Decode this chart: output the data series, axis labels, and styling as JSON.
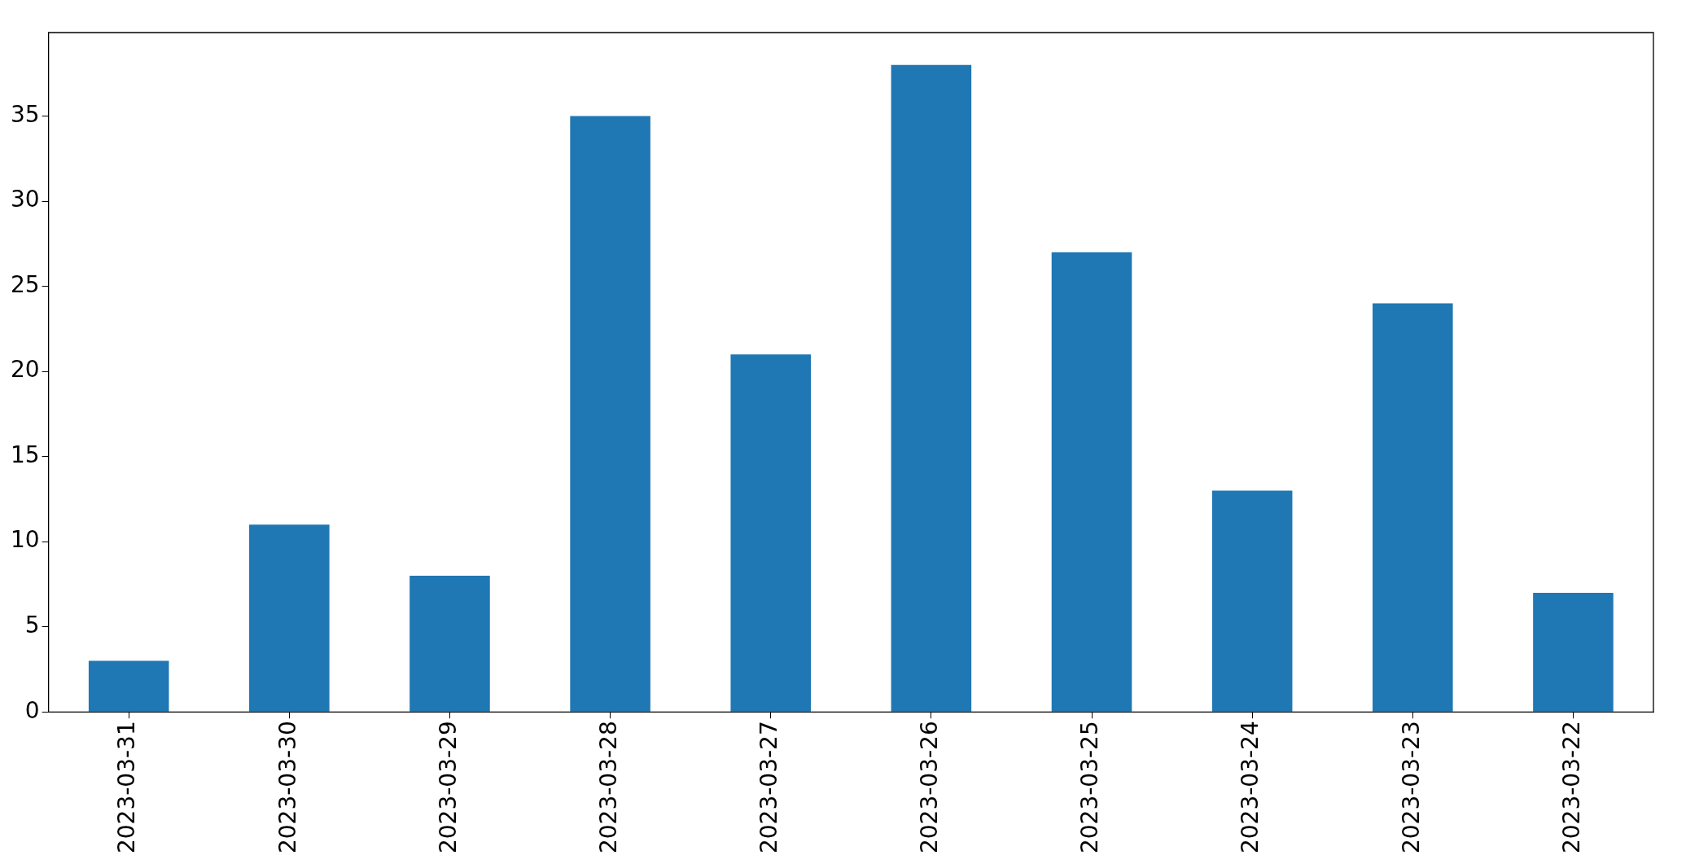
{
  "chart_data": {
    "type": "bar",
    "categories": [
      "2023-03-31",
      "2023-03-30",
      "2023-03-29",
      "2023-03-28",
      "2023-03-27",
      "2023-03-26",
      "2023-03-25",
      "2023-03-24",
      "2023-03-23",
      "2023-03-22"
    ],
    "values": [
      3,
      11,
      8,
      35,
      21,
      38,
      27,
      13,
      24,
      7
    ],
    "color": "#1f77b4",
    "ylim": [
      0,
      39.9
    ],
    "yticks": [
      0,
      5,
      10,
      15,
      20,
      25,
      30,
      35
    ]
  }
}
